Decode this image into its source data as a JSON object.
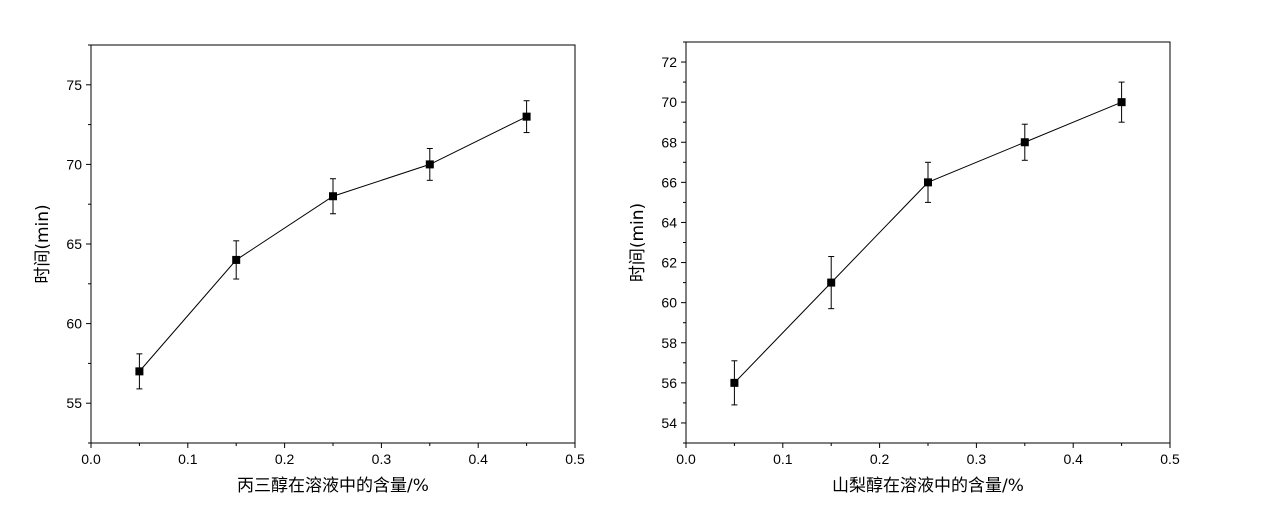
{
  "chart_data": [
    {
      "type": "line",
      "title": "",
      "xlabel": "丙三醇在溶液中的含量/%",
      "ylabel": "时间(min)",
      "xlim": [
        0.0,
        0.5
      ],
      "ylim": [
        52.5,
        77.5
      ],
      "xticks": [
        "0.0",
        "0.1",
        "0.2",
        "0.3",
        "0.4",
        "0.5"
      ],
      "yticks": [
        "55",
        "60",
        "65",
        "70",
        "75"
      ],
      "series": [
        {
          "x": [
            0.05,
            0.15,
            0.25,
            0.35,
            0.45
          ],
          "y": [
            57,
            64,
            68,
            70,
            73
          ],
          "error": [
            1.1,
            1.2,
            1.1,
            1.0,
            1.0
          ]
        }
      ],
      "grid": false,
      "legend": "none"
    },
    {
      "type": "line",
      "title": "",
      "xlabel": "山梨醇在溶液中的含量/%",
      "ylabel": "时间(min)",
      "xlim": [
        0.0,
        0.5
      ],
      "ylim": [
        53,
        73
      ],
      "xticks": [
        "0.0",
        "0.1",
        "0.2",
        "0.3",
        "0.4",
        "0.5"
      ],
      "yticks": [
        "54",
        "56",
        "58",
        "60",
        "62",
        "64",
        "66",
        "68",
        "70",
        "72"
      ],
      "series": [
        {
          "x": [
            0.05,
            0.15,
            0.25,
            0.35,
            0.45
          ],
          "y": [
            56,
            61,
            66,
            68,
            70
          ],
          "error": [
            1.1,
            1.3,
            1.0,
            0.9,
            1.0
          ]
        }
      ],
      "grid": false,
      "legend": "none"
    }
  ]
}
